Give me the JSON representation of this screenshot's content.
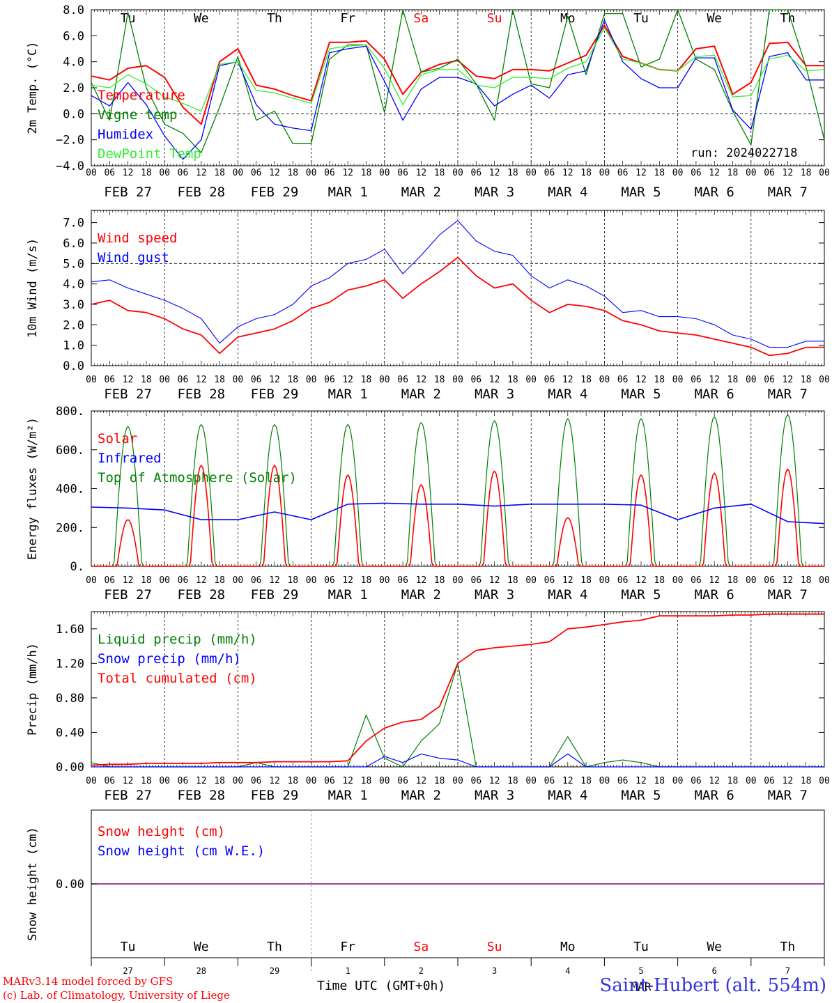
{
  "days": {
    "weekday": [
      "Tu",
      "We",
      "Th",
      "Fr",
      "Sa",
      "Su",
      "Mo",
      "Tu",
      "We",
      "Th"
    ],
    "weekday_colors": [
      "#000000",
      "#000000",
      "#000000",
      "#000000",
      "#ff0000",
      "#ff0000",
      "#000000",
      "#000000",
      "#000000",
      "#000000"
    ],
    "date_labels": [
      "FEB 27",
      "FEB 28",
      "FEB 29",
      "MAR  1",
      "MAR  2",
      "MAR  3",
      "MAR  4",
      "MAR  5",
      "MAR  6",
      "MAR  7"
    ],
    "day_numbers": [
      "27",
      "28",
      "29",
      "1",
      "2",
      "3",
      "4",
      "5",
      "6",
      "7"
    ],
    "hour_ticks": [
      "00",
      "06",
      "12",
      "18"
    ],
    "hour_end": "00",
    "month_label": "MAR"
  },
  "footer": {
    "model": "MARv3.14 model forced by GFS",
    "copyright": "(c) Lab. of Climatology, University of Liege",
    "xlabel": "Time UTC (GMT+0h)",
    "station": "Saint-Hubert (alt. 554m)"
  },
  "run_label": "run: 2024022718",
  "colors": {
    "red": "#ff0000",
    "green": "#008000",
    "blue": "#0000ff",
    "light_green": "#33ee33",
    "purple": "#800080"
  },
  "chart_data": [
    {
      "type": "line",
      "ylabel": "2m Temp. (°C)",
      "ylim": [
        -4,
        8
      ],
      "yticks": [
        "8.0",
        "6.0",
        "4.0",
        "2.0",
        "0.0",
        "−2.0",
        "−4.0"
      ],
      "ytick_values": [
        8,
        6,
        4,
        2,
        0,
        -2,
        -4
      ],
      "ref_line": 0,
      "x_hours": [
        0,
        6,
        12,
        18,
        24,
        30,
        36,
        42,
        48,
        54,
        60,
        66,
        72,
        78,
        84,
        90,
        96,
        102,
        108,
        114,
        120,
        126,
        132,
        138,
        144,
        150,
        156,
        162,
        168,
        174,
        180,
        186,
        192,
        198,
        204,
        210,
        216,
        222,
        228,
        234,
        240
      ],
      "series": [
        {
          "name": "Temperature",
          "color": "#ff0000",
          "values": [
            2.9,
            2.6,
            3.5,
            3.7,
            2.8,
            0.5,
            -0.8,
            4.0,
            5.0,
            2.2,
            1.9,
            1.4,
            1.0,
            5.5,
            5.5,
            5.6,
            4.2,
            1.5,
            3.2,
            3.8,
            4.1,
            2.9,
            2.7,
            3.4,
            3.4,
            3.3,
            3.9,
            4.5,
            6.8,
            4.4,
            3.9,
            3.4,
            3.3,
            5.0,
            5.2,
            1.5,
            2.4,
            5.4,
            5.5,
            3.7,
            3.7
          ]
        },
        {
          "name": "Vigne temp",
          "color": "#008000",
          "values": [
            2.4,
            -0.5,
            7.8,
            2.0,
            -0.8,
            -1.5,
            -3.0,
            0.5,
            4.4,
            -0.5,
            0.2,
            -2.3,
            -2.3,
            4.2,
            5.3,
            5.3,
            0.1,
            8.0,
            3.2,
            3.5,
            4.2,
            2.3,
            -0.5,
            8.0,
            2.3,
            2.0,
            7.5,
            3.0,
            7.7,
            7.7,
            3.6,
            4.2,
            8.0,
            4.2,
            3.4,
            0.2,
            -2.4,
            8.0,
            8.0,
            3.6,
            -2.0
          ]
        },
        {
          "name": "Humidex",
          "color": "#0000ff",
          "values": [
            1.4,
            0.6,
            2.4,
            0.7,
            -1.7,
            -3.5,
            -2.0,
            3.7,
            4.0,
            0.7,
            -0.8,
            -1.1,
            -1.3,
            4.7,
            5.0,
            5.2,
            2.5,
            -0.5,
            1.9,
            2.8,
            2.8,
            2.3,
            0.6,
            1.5,
            2.2,
            1.2,
            3.0,
            3.3,
            7.2,
            4.0,
            2.7,
            2.0,
            2.0,
            4.3,
            4.3,
            0.3,
            -1.2,
            4.4,
            4.7,
            2.6,
            2.6
          ]
        },
        {
          "name": "DewPoint Temp",
          "color": "#33ee33",
          "values": [
            2.2,
            2.0,
            3.0,
            2.3,
            1.3,
            0.8,
            0.2,
            3.8,
            4.0,
            1.8,
            1.6,
            1.2,
            0.8,
            5.0,
            5.2,
            5.3,
            3.5,
            0.7,
            3.0,
            3.4,
            3.4,
            2.2,
            2.0,
            2.8,
            2.8,
            2.7,
            3.5,
            4.0,
            6.6,
            4.2,
            3.9,
            3.4,
            3.3,
            4.4,
            4.5,
            1.3,
            1.4,
            4.2,
            4.5,
            3.3,
            3.4
          ]
        }
      ]
    },
    {
      "type": "line",
      "ylabel": "10m Wind (m/s)",
      "ylim": [
        0,
        7.6
      ],
      "yticks": [
        "7.0",
        "6.0",
        "5.0",
        "4.0",
        "3.0",
        "2.0",
        "1.0",
        "0.0"
      ],
      "ytick_values": [
        7,
        6,
        5,
        4,
        3,
        2,
        1,
        0
      ],
      "ref_line": 5,
      "x_hours": [
        0,
        6,
        12,
        18,
        24,
        30,
        36,
        42,
        48,
        54,
        60,
        66,
        72,
        78,
        84,
        90,
        96,
        102,
        108,
        114,
        120,
        126,
        132,
        138,
        144,
        150,
        156,
        162,
        168,
        174,
        180,
        186,
        192,
        198,
        204,
        210,
        216,
        222,
        228,
        234,
        240
      ],
      "series": [
        {
          "name": "Wind speed",
          "color": "#ff0000",
          "values": [
            3.0,
            3.2,
            2.7,
            2.6,
            2.3,
            1.8,
            1.5,
            0.6,
            1.4,
            1.6,
            1.8,
            2.2,
            2.8,
            3.1,
            3.7,
            3.9,
            4.2,
            3.3,
            4.0,
            4.6,
            5.3,
            4.4,
            3.8,
            4.0,
            3.2,
            2.6,
            3.0,
            2.9,
            2.7,
            2.2,
            2.0,
            1.7,
            1.6,
            1.5,
            1.3,
            1.1,
            0.9,
            0.5,
            0.6,
            0.9,
            0.9
          ]
        },
        {
          "name": "Wind gust",
          "color": "#0000ff",
          "values": [
            4.1,
            4.2,
            3.8,
            3.5,
            3.2,
            2.8,
            2.3,
            1.1,
            1.9,
            2.3,
            2.5,
            3.0,
            3.9,
            4.3,
            5.0,
            5.2,
            5.7,
            4.5,
            5.4,
            6.4,
            7.1,
            6.1,
            5.6,
            5.4,
            4.4,
            3.8,
            4.2,
            3.9,
            3.4,
            2.6,
            2.7,
            2.4,
            2.4,
            2.3,
            2.0,
            1.5,
            1.3,
            0.9,
            0.9,
            1.2,
            1.2
          ]
        }
      ]
    },
    {
      "type": "line",
      "ylabel": "Energy fluxes (W/m²)",
      "ylim": [
        0,
        800
      ],
      "yticks": [
        "800.",
        "600.",
        "400.",
        "200.",
        "0."
      ],
      "ytick_values": [
        800,
        600,
        400,
        200,
        0
      ],
      "series": [
        {
          "name": "Solar",
          "color": "#ff0000",
          "day_peaks": [
            240,
            520,
            520,
            470,
            420,
            490,
            250,
            470,
            480,
            500
          ]
        },
        {
          "name": "Infrared",
          "color": "#0000ff",
          "x_hours": [
            0,
            12,
            24,
            36,
            48,
            60,
            72,
            84,
            96,
            108,
            120,
            132,
            144,
            156,
            168,
            180,
            192,
            204,
            216,
            228,
            240
          ],
          "values": [
            305,
            300,
            290,
            240,
            240,
            280,
            240,
            320,
            325,
            320,
            320,
            310,
            320,
            320,
            320,
            315,
            240,
            300,
            320,
            230,
            220
          ]
        },
        {
          "name": "Top of Atmosphere (Solar)",
          "color": "#008000",
          "day_peaks": [
            720,
            730,
            730,
            730,
            740,
            750,
            760,
            760,
            770,
            780
          ]
        }
      ]
    },
    {
      "type": "line",
      "ylabel": "Precip (mm/h)",
      "ylim": [
        0,
        1.8
      ],
      "yticks": [
        "1.60",
        "1.20",
        "0.80",
        "0.40",
        "0.00"
      ],
      "ytick_values": [
        1.6,
        1.2,
        0.8,
        0.4,
        0
      ],
      "x_hours": [
        0,
        6,
        12,
        18,
        24,
        30,
        36,
        42,
        48,
        54,
        60,
        66,
        72,
        78,
        84,
        90,
        96,
        102,
        108,
        114,
        120,
        126,
        132,
        138,
        144,
        150,
        156,
        162,
        168,
        174,
        180,
        186,
        192,
        198,
        204,
        210,
        216,
        222,
        228,
        234,
        240
      ],
      "series": [
        {
          "name": "Liquid precip (mm/h)",
          "color": "#008000",
          "values": [
            0.05,
            0,
            0,
            0,
            0,
            0,
            0,
            0,
            0,
            0.05,
            0,
            0,
            0,
            0,
            0,
            0.6,
            0.1,
            0,
            0.3,
            0.5,
            1.2,
            0,
            0,
            0,
            0,
            0,
            0.35,
            0,
            0.05,
            0.08,
            0.05,
            0,
            0,
            0,
            0,
            0,
            0,
            0,
            0,
            0,
            0
          ]
        },
        {
          "name": "Snow precip (mm/h)",
          "color": "#0000ff",
          "values": [
            0,
            0,
            0,
            0,
            0,
            0,
            0,
            0,
            0,
            0,
            0,
            0,
            0,
            0,
            0,
            0,
            0.12,
            0.05,
            0.15,
            0.1,
            0.08,
            0,
            0,
            0,
            0,
            0,
            0.15,
            0,
            0,
            0,
            0,
            0,
            0,
            0,
            0,
            0,
            0,
            0,
            0,
            0,
            0
          ]
        },
        {
          "name": "Total cumulated (cm)",
          "color": "#ff0000",
          "values": [
            0.02,
            0.03,
            0.03,
            0.04,
            0.04,
            0.04,
            0.04,
            0.05,
            0.05,
            0.05,
            0.06,
            0.06,
            0.06,
            0.06,
            0.07,
            0.3,
            0.45,
            0.52,
            0.55,
            0.7,
            1.2,
            1.35,
            1.38,
            1.4,
            1.42,
            1.45,
            1.6,
            1.62,
            1.65,
            1.68,
            1.7,
            1.75,
            1.75,
            1.75,
            1.75,
            1.76,
            1.76,
            1.77,
            1.77,
            1.77,
            1.77
          ]
        }
      ]
    },
    {
      "type": "line",
      "ylabel": "Snow height (cm)",
      "ylim": [
        -1,
        1
      ],
      "yticks": [
        "0.00"
      ],
      "ytick_values": [
        0
      ],
      "series": [
        {
          "name": "Snow height (cm)",
          "color": "#ff0000",
          "values": [
            0,
            0
          ]
        },
        {
          "name": "Snow height (cm W.E.)",
          "color": "#0000ff",
          "values": [
            0,
            0
          ]
        }
      ]
    }
  ]
}
